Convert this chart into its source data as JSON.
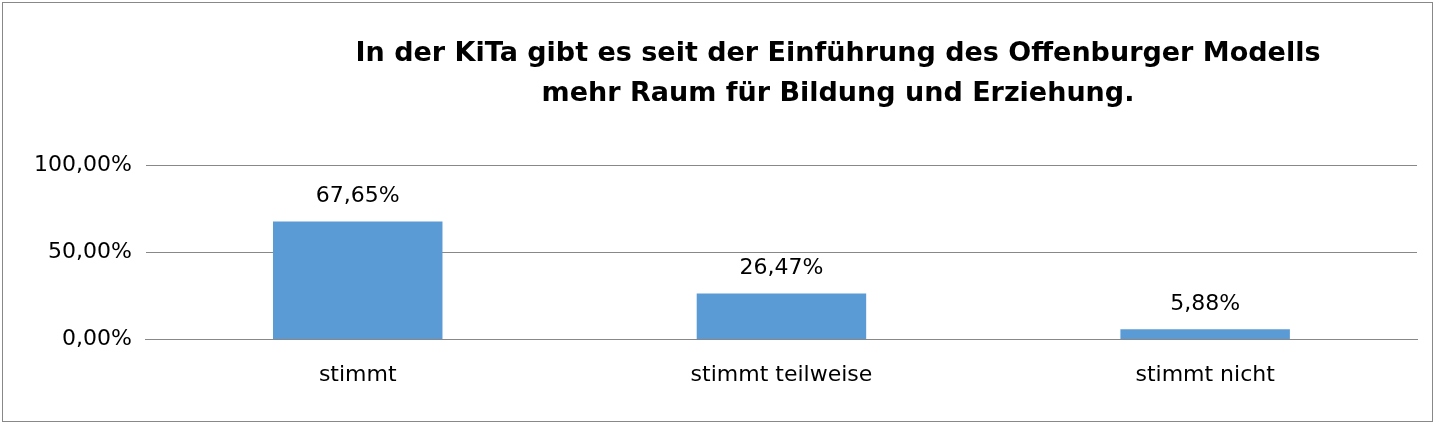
{
  "chart_data": {
    "type": "bar",
    "title": "In der KiTa gibt es seit der Einführung des Offenburger Modells mehr Raum für Bildung und Erziehung.",
    "categories": [
      "stimmt",
      "stimmt teilweise",
      "stimmt nicht"
    ],
    "values": [
      67.65,
      26.47,
      5.88
    ],
    "value_labels": [
      "67,65%",
      "26,47%",
      "5,88%"
    ],
    "color": "#5b9bd5",
    "ylim": [
      0,
      100
    ],
    "yticks": [
      {
        "value": 0,
        "label": "0,00%"
      },
      {
        "value": 50,
        "label": "50,00%"
      },
      {
        "value": 100,
        "label": "100,00%"
      }
    ],
    "grid": "y",
    "legend": false
  }
}
